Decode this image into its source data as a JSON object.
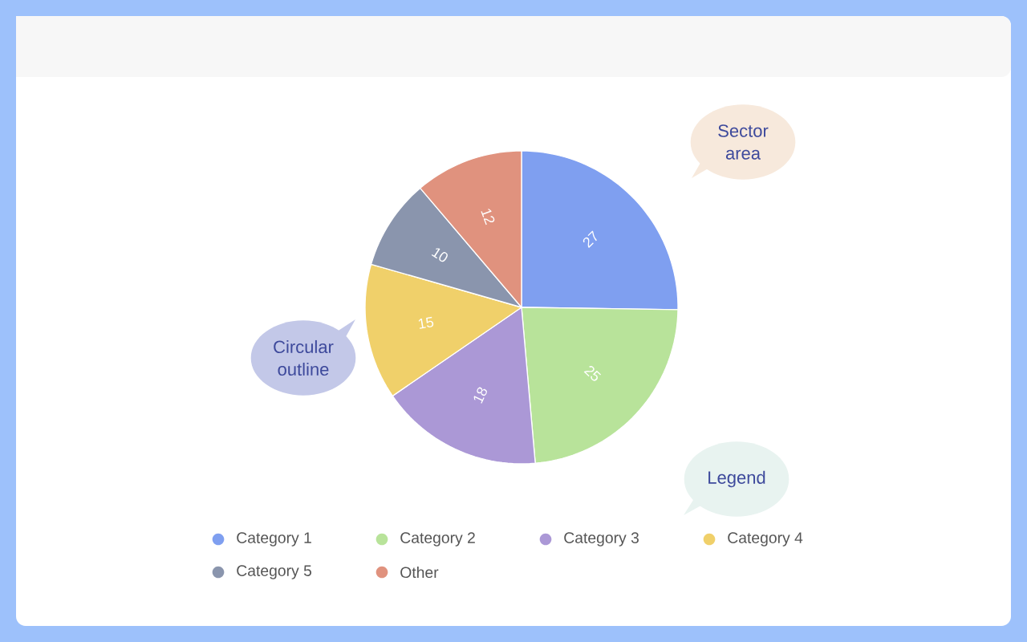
{
  "chart_data": {
    "type": "pie",
    "categories": [
      "Category 1",
      "Category 2",
      "Category 3",
      "Category 4",
      "Category 5",
      "Other"
    ],
    "values": [
      27,
      25,
      18,
      15,
      10,
      12
    ],
    "colors": [
      "#7f9ff0",
      "#b8e39a",
      "#ab98d6",
      "#f0d06a",
      "#8a95ad",
      "#e0927e"
    ],
    "data_labels": true,
    "legend": "bottom",
    "annotations": [
      "Sector area",
      "Circular outline",
      "Legend"
    ]
  }
}
